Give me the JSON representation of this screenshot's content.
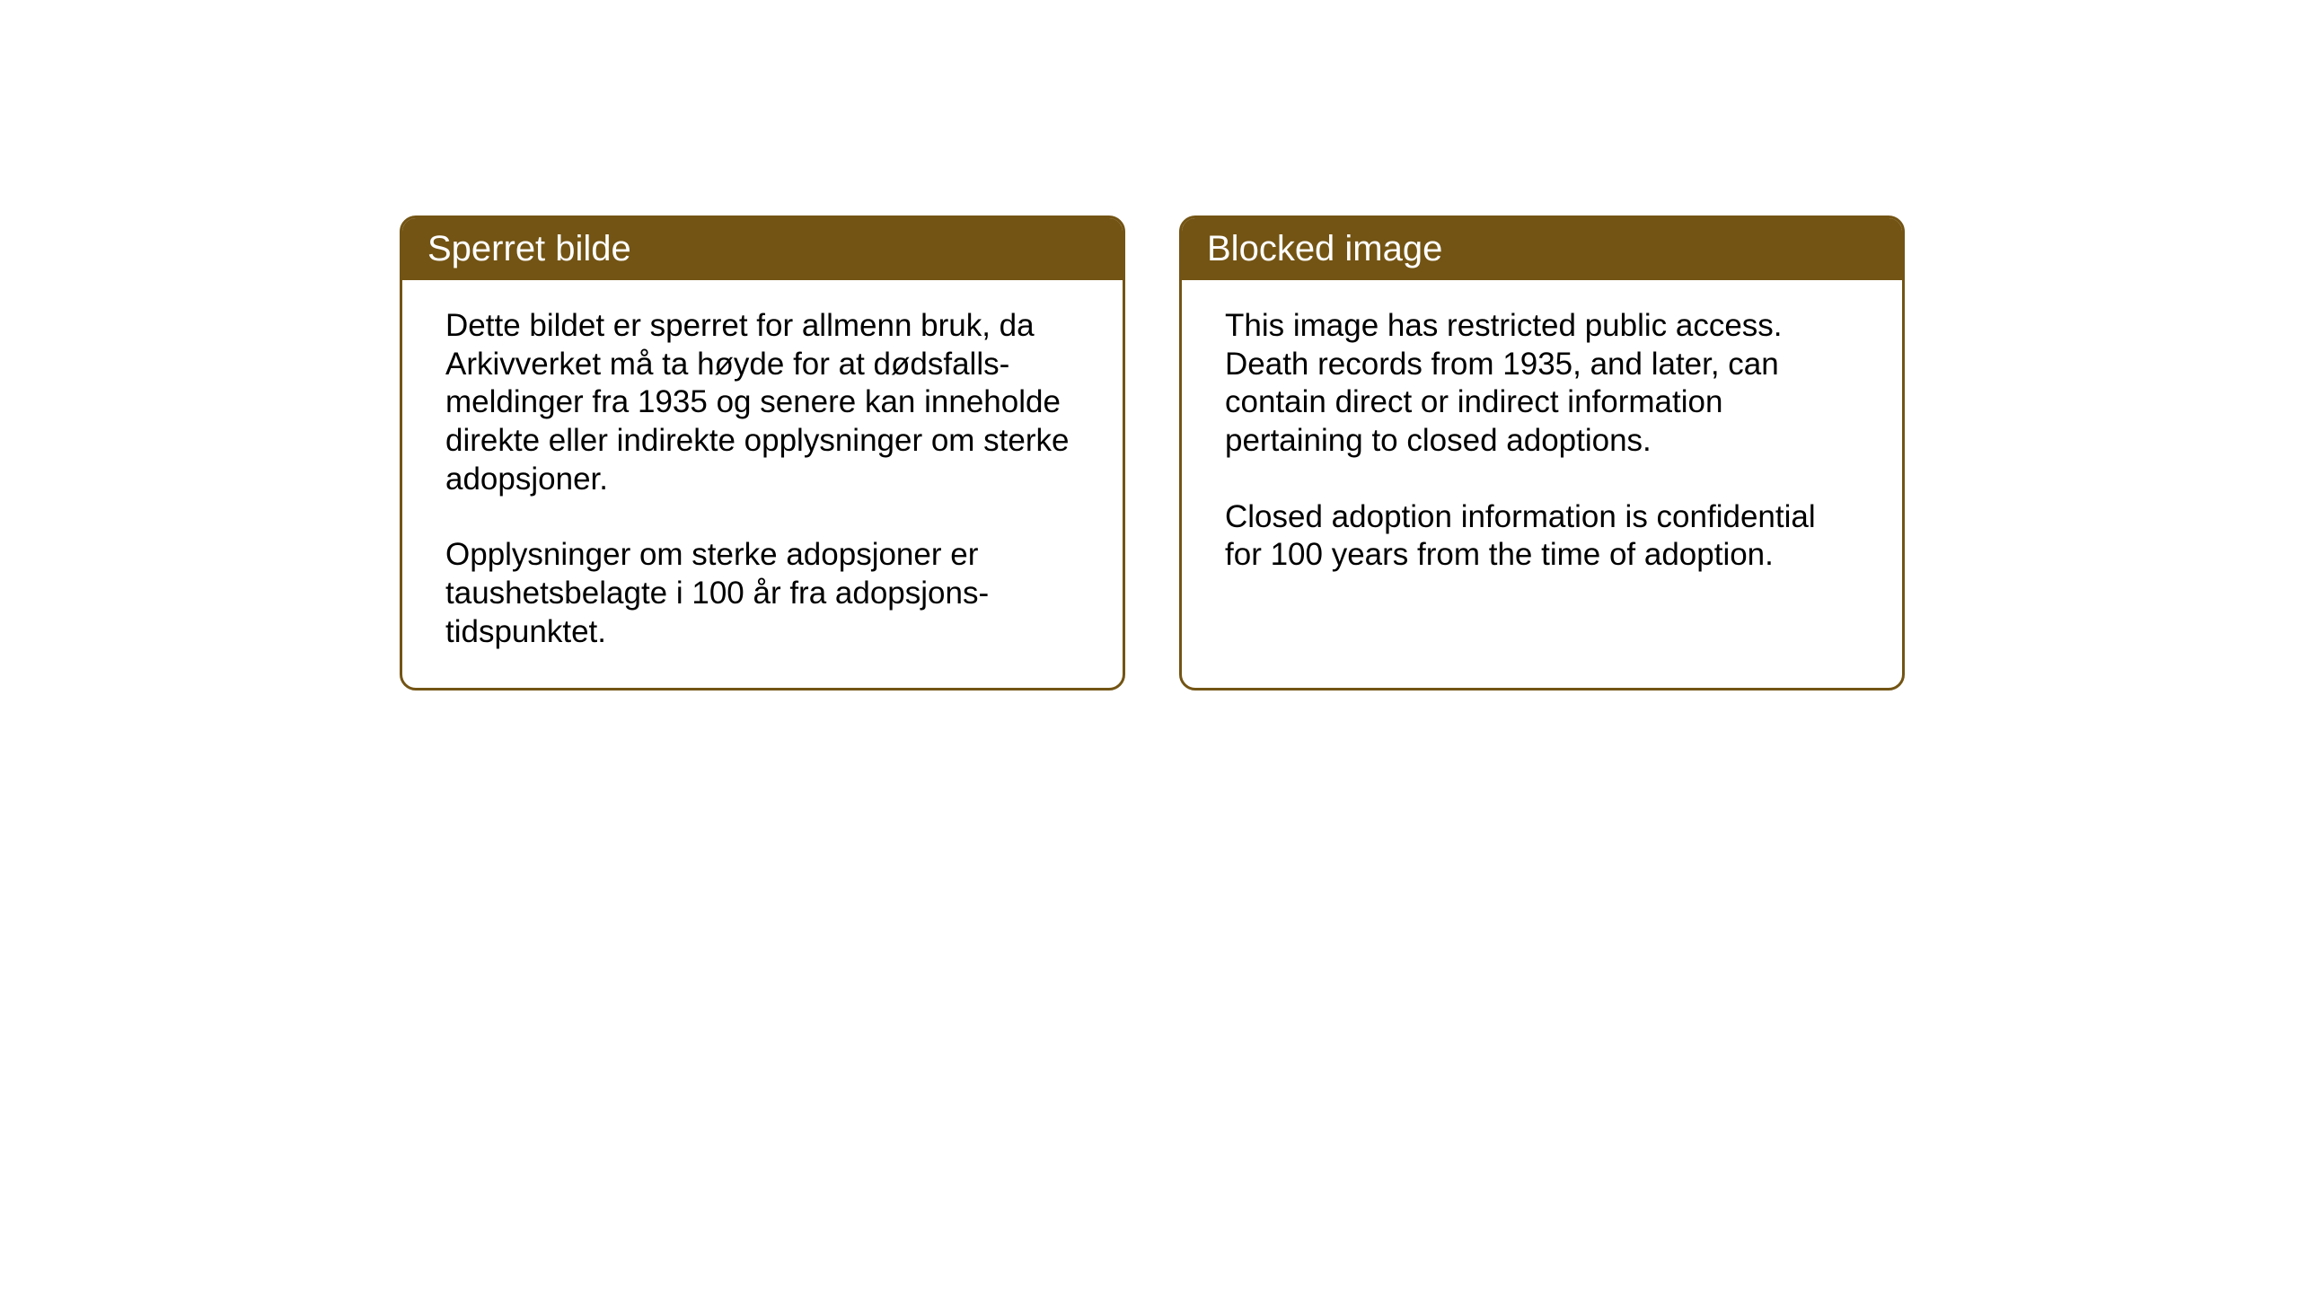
{
  "cards": {
    "norwegian": {
      "header": "Sperret bilde",
      "paragraph1": "Dette bildet er sperret for allmenn bruk, da Arkivverket må ta høyde for at dødsfalls-meldinger fra 1935 og senere kan inneholde direkte eller indirekte opplysninger om sterke adopsjoner.",
      "paragraph2": "Opplysninger om sterke adopsjoner er taushetsbelagte i 100 år fra adopsjons-tidspunktet."
    },
    "english": {
      "header": "Blocked image",
      "paragraph1": "This image has restricted public access. Death records from 1935, and later, can contain direct or indirect information pertaining to closed adoptions.",
      "paragraph2": "Closed adoption information is confidential for 100 years from the time of adoption."
    }
  },
  "styling": {
    "card_border_color": "#735414",
    "card_header_bg": "#735414",
    "card_header_text_color": "#ffffff",
    "card_body_bg": "#ffffff",
    "body_text_color": "#000000",
    "page_bg": "#ffffff",
    "header_fontsize": 40,
    "body_fontsize": 35,
    "border_radius": 18,
    "border_width": 3
  }
}
